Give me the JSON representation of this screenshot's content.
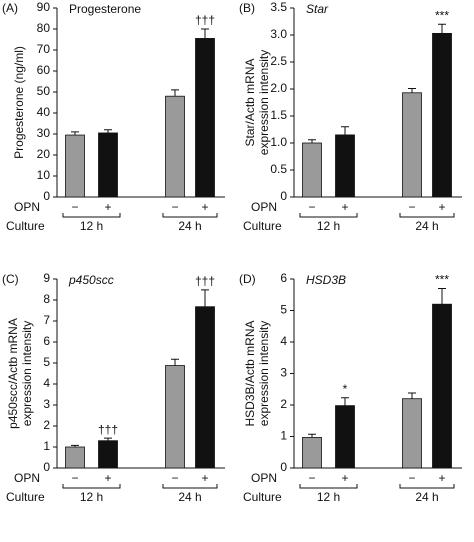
{
  "chart_data": [
    {
      "type": "bar",
      "panel_label": "(A)",
      "title": "Progesterone",
      "italic_title": false,
      "y_label": [
        "Progesterone (ng/ml)"
      ],
      "row_labels": [
        "OPN",
        "Culture"
      ],
      "treatment": [
        "−",
        "+",
        "−",
        "+"
      ],
      "groups": [
        "12 h",
        "24 h"
      ],
      "values": [
        29.5,
        30.5,
        48,
        75.5
      ],
      "errors": [
        1.5,
        1.5,
        3,
        4.5
      ],
      "annotations": [
        null,
        null,
        null,
        "†††"
      ],
      "colors": [
        "#9a9a9a",
        "#111111",
        "#9a9a9a",
        "#111111"
      ],
      "ylim": [
        0,
        90
      ],
      "yticks": [
        0,
        10,
        20,
        30,
        40,
        50,
        60,
        70,
        80,
        90
      ]
    },
    {
      "type": "bar",
      "panel_label": "(B)",
      "title": "Star",
      "italic_title": true,
      "y_label": [
        "Star/Actb mRNA",
        "expression intensity"
      ],
      "row_labels": [
        "OPN",
        "Culture"
      ],
      "treatment": [
        "−",
        "+",
        "−",
        "+"
      ],
      "groups": [
        "12 h",
        "24 h"
      ],
      "values": [
        1.0,
        1.15,
        1.93,
        3.03
      ],
      "errors": [
        0.06,
        0.15,
        0.08,
        0.17
      ],
      "annotations": [
        null,
        null,
        null,
        "***"
      ],
      "colors": [
        "#9a9a9a",
        "#111111",
        "#9a9a9a",
        "#111111"
      ],
      "ylim": [
        0,
        3.5
      ],
      "yticks": [
        0,
        0.5,
        {
          "value": 1,
          "label": "1.0"
        },
        1.5,
        {
          "value": 2,
          "label": "2.0"
        },
        2.5,
        {
          "value": 3,
          "label": "3.0"
        },
        3.5
      ]
    },
    {
      "type": "bar",
      "panel_label": "(C)",
      "title": "p450scc",
      "italic_title": true,
      "y_label": [
        "p450scc/Actb mRNA",
        "expression intensity"
      ],
      "row_labels": [
        "OPN",
        "Culture"
      ],
      "treatment": [
        "−",
        "+",
        "−",
        "+"
      ],
      "groups": [
        "12 h",
        "24 h"
      ],
      "values": [
        1.0,
        1.3,
        4.88,
        7.68
      ],
      "errors": [
        0.08,
        0.12,
        0.3,
        0.8
      ],
      "annotations": [
        null,
        "†††",
        null,
        "†††"
      ],
      "colors": [
        "#9a9a9a",
        "#111111",
        "#9a9a9a",
        "#111111"
      ],
      "ylim": [
        0,
        9
      ],
      "yticks": [
        0,
        1,
        2,
        3,
        4,
        5,
        6,
        7,
        8,
        9
      ]
    },
    {
      "type": "bar",
      "panel_label": "(D)",
      "title": "HSD3B",
      "italic_title": true,
      "y_label": [
        "HSD3B/Actb mRNA",
        "expression intensity"
      ],
      "row_labels": [
        "OPN",
        "Culture"
      ],
      "treatment": [
        "−",
        "+",
        "−",
        "+"
      ],
      "groups": [
        "12 h",
        "24 h"
      ],
      "values": [
        0.97,
        1.98,
        2.2,
        5.2
      ],
      "errors": [
        0.1,
        0.25,
        0.18,
        0.5
      ],
      "annotations": [
        null,
        "*",
        null,
        "***"
      ],
      "colors": [
        "#9a9a9a",
        "#111111",
        "#9a9a9a",
        "#111111"
      ],
      "ylim": [
        0,
        6
      ],
      "yticks": [
        0,
        1,
        2,
        3,
        4,
        5,
        6
      ]
    }
  ]
}
